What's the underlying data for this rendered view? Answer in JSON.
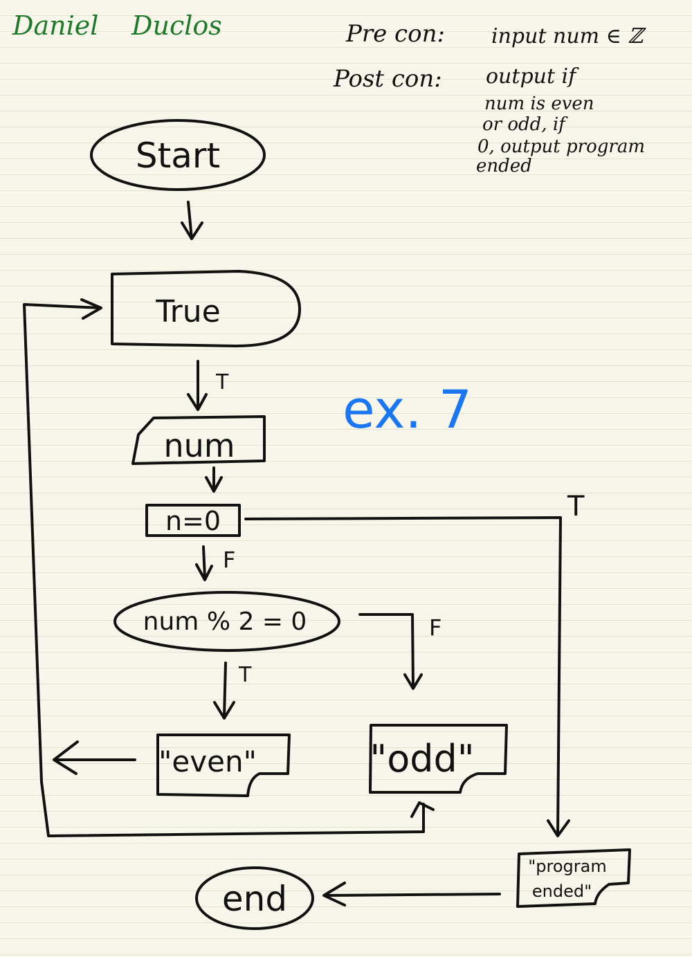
{
  "author": {
    "first": "Daniel",
    "last": "Duclos"
  },
  "conditions": {
    "pre_label": "Pre con:",
    "pre_text": "input num ∈ ℤ",
    "post_label": "Post con:",
    "post_lines": [
      "output if",
      "num is even",
      "or odd, if",
      "0, output program",
      "ended"
    ]
  },
  "exercise_label": "ex. 7",
  "nodes": {
    "start": "Start",
    "loop": "True",
    "input": "num",
    "check_zero": "n=0",
    "check_even": "num % 2 = 0",
    "out_even": "\"even\"",
    "out_odd": "\"odd\"",
    "out_ended_line1": "\"program",
    "out_ended_line2": "ended\"",
    "end": "end"
  },
  "edge_labels": {
    "loop_true": "T",
    "zero_true": "T",
    "zero_false": "F",
    "even_true": "T",
    "even_false": "F"
  }
}
